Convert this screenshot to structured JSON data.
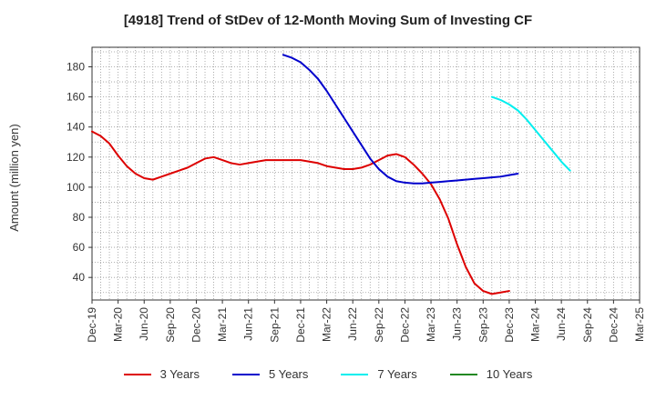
{
  "title": "[4918]  Trend of StDev of 12-Month Moving Sum of Investing CF",
  "chart_data": {
    "type": "line",
    "title": "[4918]  Trend of StDev of 12-Month Moving Sum of Investing CF",
    "ylabel": "Amount (million yen)",
    "xlabel": "",
    "ylim": [
      25,
      193
    ],
    "y_ticks": [
      40,
      60,
      80,
      100,
      120,
      140,
      160,
      180
    ],
    "grid": true,
    "legend_position": "bottom",
    "x_tick_labels": [
      "Dec-19",
      "Mar-20",
      "Jun-20",
      "Sep-20",
      "Dec-20",
      "Mar-21",
      "Jun-21",
      "Sep-21",
      "Dec-21",
      "Mar-22",
      "Jun-22",
      "Sep-22",
      "Dec-22",
      "Mar-23",
      "Jun-23",
      "Sep-23",
      "Dec-23",
      "Mar-24",
      "Jun-24",
      "Sep-24",
      "Dec-24",
      "Mar-25"
    ],
    "x_months": [
      "Dec-19",
      "Jan-20",
      "Feb-20",
      "Mar-20",
      "Apr-20",
      "May-20",
      "Jun-20",
      "Jul-20",
      "Aug-20",
      "Sep-20",
      "Oct-20",
      "Nov-20",
      "Dec-20",
      "Jan-21",
      "Feb-21",
      "Mar-21",
      "Apr-21",
      "May-21",
      "Jun-21",
      "Jul-21",
      "Aug-21",
      "Sep-21",
      "Oct-21",
      "Nov-21",
      "Dec-21",
      "Jan-22",
      "Feb-22",
      "Mar-22",
      "Apr-22",
      "May-22",
      "Jun-22",
      "Jul-22",
      "Aug-22",
      "Sep-22",
      "Oct-22",
      "Nov-22",
      "Dec-22",
      "Jan-23",
      "Feb-23",
      "Mar-23",
      "Apr-23",
      "May-23",
      "Jun-23",
      "Jul-23",
      "Aug-23",
      "Sep-23",
      "Oct-23",
      "Nov-23",
      "Dec-23",
      "Jan-24",
      "Feb-24",
      "Mar-24",
      "Apr-24",
      "May-24",
      "Jun-24",
      "Jul-24",
      "Aug-24",
      "Sep-24",
      "Oct-24",
      "Nov-24",
      "Dec-24",
      "Jan-25",
      "Feb-25",
      "Mar-25"
    ],
    "series": [
      {
        "name": "3 Years",
        "color": "#dd0000",
        "values": [
          137,
          134,
          129,
          121,
          114,
          109,
          106,
          105,
          107,
          109,
          111,
          113,
          116,
          119,
          120,
          118,
          116,
          115,
          116,
          117,
          118,
          118,
          118,
          118,
          118,
          117,
          116,
          114,
          113,
          112,
          112,
          113,
          115,
          118,
          121,
          122,
          120,
          115,
          109,
          102,
          92,
          79,
          62,
          47,
          36,
          31,
          29,
          30,
          31,
          null,
          null,
          null,
          null,
          null,
          null,
          null,
          null,
          null,
          null,
          null,
          null,
          null,
          null,
          null
        ]
      },
      {
        "name": "5 Years",
        "color": "#0000cc",
        "values": [
          null,
          null,
          null,
          null,
          null,
          null,
          null,
          null,
          null,
          null,
          null,
          null,
          null,
          null,
          null,
          null,
          null,
          null,
          null,
          null,
          null,
          null,
          188,
          186,
          183,
          178,
          172,
          164,
          155,
          146,
          137,
          128,
          119,
          112,
          107,
          104,
          103,
          102.5,
          102.5,
          103,
          103.5,
          104,
          104.5,
          105,
          105.5,
          106,
          106.5,
          107,
          108,
          109,
          null,
          null,
          null,
          null,
          null,
          null,
          null,
          null,
          null,
          null,
          null,
          null,
          null,
          null
        ]
      },
      {
        "name": "7 Years",
        "color": "#00eeee",
        "values": [
          null,
          null,
          null,
          null,
          null,
          null,
          null,
          null,
          null,
          null,
          null,
          null,
          null,
          null,
          null,
          null,
          null,
          null,
          null,
          null,
          null,
          null,
          null,
          null,
          null,
          null,
          null,
          null,
          null,
          null,
          null,
          null,
          null,
          null,
          null,
          null,
          null,
          null,
          null,
          null,
          null,
          null,
          null,
          null,
          null,
          null,
          160,
          158,
          155,
          151,
          145,
          138,
          131,
          124,
          117,
          111,
          null,
          null,
          null,
          null,
          null,
          null,
          null,
          null
        ]
      },
      {
        "name": "10 Years",
        "color": "#228822",
        "values": []
      }
    ]
  }
}
